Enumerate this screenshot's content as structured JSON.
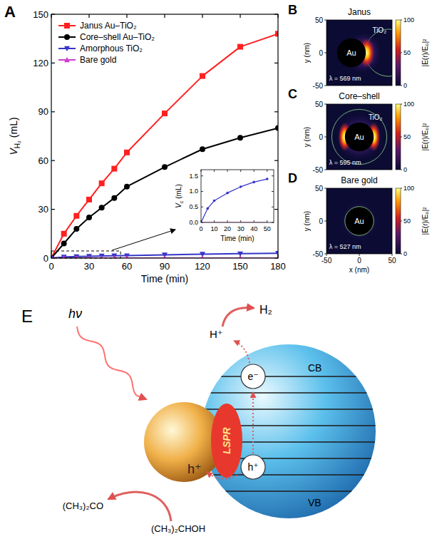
{
  "chart_data": [
    {
      "type": "line",
      "x": [
        0,
        10,
        20,
        30,
        40,
        50,
        60,
        90,
        120,
        150,
        180
      ],
      "xlabel": "Time (min)",
      "ylabel": "VH₂ (mL)",
      "xlim": [
        0,
        180
      ],
      "ylim": [
        0,
        150
      ],
      "xticks": [
        0,
        30,
        60,
        90,
        120,
        150,
        180
      ],
      "yticks": [
        0,
        30,
        60,
        90,
        120,
        150
      ],
      "legend": "upper left",
      "series": [
        {
          "name": "Janus Au–TiO₂",
          "color": "#ff2020",
          "marker": "square",
          "values": [
            0,
            15,
            26,
            36,
            46,
            55,
            65,
            89,
            112,
            130,
            138
          ]
        },
        {
          "name": "Core–shell Au–TiO₂",
          "color": "#000000",
          "marker": "circle",
          "values": [
            0,
            9,
            18,
            25,
            31,
            37,
            44,
            56,
            67,
            74,
            80
          ]
        },
        {
          "name": "Amorphous TiO₂",
          "color": "#3535c8",
          "marker": "triangle-down",
          "values": [
            0,
            0.7,
            0.95,
            1.15,
            1.3,
            1.4,
            1.5,
            2.0,
            2.4,
            2.7,
            3.0
          ]
        },
        {
          "name": "Bare gold",
          "color": "#cc3fcc",
          "marker": "triangle-up",
          "values": [
            0,
            0,
            0,
            0,
            0,
            0,
            0,
            0,
            0,
            0,
            0
          ]
        }
      ]
    },
    {
      "type": "line",
      "x": [
        0,
        5,
        10,
        20,
        30,
        40,
        50
      ],
      "xlabel": "Time (min)",
      "ylabel": "Vc (mL)",
      "xlim": [
        0,
        55
      ],
      "ylim": [
        0,
        1.7
      ],
      "xticks": [
        0,
        10,
        20,
        30,
        40,
        50
      ],
      "yticks": [
        {
          "value": 0,
          "label": "0.0"
        },
        {
          "value": 0.5,
          "label": "0.5"
        },
        {
          "value": 1,
          "label": "1.0"
        },
        {
          "value": 1.5,
          "label": "1.5"
        }
      ],
      "series": [
        {
          "color": "#3535c8",
          "marker": "circle",
          "values": [
            0,
            0.45,
            0.7,
            0.95,
            1.15,
            1.3,
            1.4
          ]
        },
        {
          "color": "#cc3fcc",
          "values": [
            0,
            0,
            0,
            0,
            0,
            0,
            0
          ]
        }
      ]
    }
  ],
  "panel_letters": [
    "A",
    "B",
    "C",
    "D",
    "E"
  ],
  "field_maps": [
    {
      "title": "Janus",
      "core": "Au",
      "shell": "TiO₂",
      "wavelength": "λ = 569 nm",
      "xlim": [
        -50,
        50
      ],
      "ylim": [
        -50,
        50
      ],
      "yticks": [
        -50,
        0,
        50
      ],
      "ylabel": "y (nm)",
      "tick_labels": "y",
      "colorbar": {
        "range": [
          0,
          100
        ],
        "ticks": [
          0,
          50,
          100
        ],
        "label": "|E(r)/E₀|²"
      }
    },
    {
      "title": "Core–shell",
      "core": "Au",
      "shell": "TiO₂",
      "wavelength": "λ = 595 nm",
      "xlim": [
        -50,
        50
      ],
      "ylim": [
        -50,
        50
      ],
      "yticks": [
        -50,
        0,
        50
      ],
      "ylabel": "y (nm)",
      "tick_labels": "y",
      "colorbar": {
        "range": [
          0,
          100
        ],
        "ticks": [
          0,
          50,
          100
        ],
        "label": "|E(r)/E₀|²"
      }
    },
    {
      "title": "Bare gold",
      "core": "Au",
      "wavelength": "λ = 527 nm",
      "xlim": [
        -50,
        50
      ],
      "ylim": [
        -50,
        50
      ],
      "xticks": [
        -50,
        0,
        50
      ],
      "yticks": [
        -50,
        0,
        50
      ],
      "xlabel": "x (nm)",
      "ylabel": "y (nm)",
      "colorbar": {
        "range": [
          0,
          100
        ],
        "ticks": [
          0,
          50,
          100
        ],
        "label": "|E(r)/E₀|²"
      }
    }
  ],
  "schematic": {
    "light": "hν",
    "hydrogen": "H₂",
    "proton": "H⁺",
    "cb": "CB",
    "vb": "VB",
    "electron": "e⁻",
    "hole": "h⁺",
    "metal_hole": "h⁺",
    "lspr": "LSPR",
    "product": "(CH₃)₂CO",
    "reactant": "(CH₃)₂CHOH"
  }
}
